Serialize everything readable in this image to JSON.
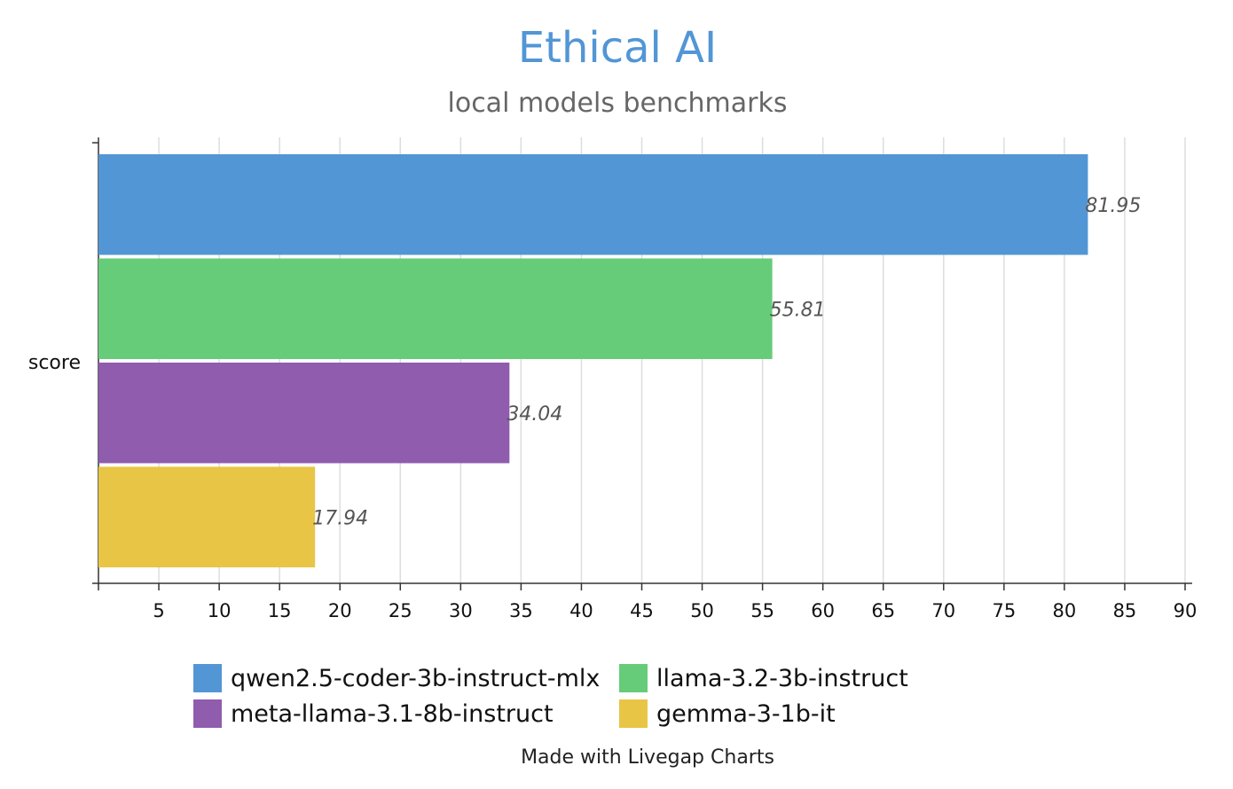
{
  "chart_data": {
    "type": "bar",
    "orientation": "horizontal",
    "title": "Ethical AI",
    "subtitle": "local models benchmarks",
    "categories": [
      "score"
    ],
    "series": [
      {
        "name": "qwen2.5-coder-3b-instruct-mlx",
        "color": "#5296d5",
        "values": [
          81.95
        ],
        "label": "81.95"
      },
      {
        "name": "llama-3.2-3b-instruct",
        "color": "#66cc7a",
        "values": [
          55.81
        ],
        "label": "55.81"
      },
      {
        "name": "meta-llama-3.1-8b-instruct",
        "color": "#905cae",
        "values": [
          34.04
        ],
        "label": "34.04"
      },
      {
        "name": "gemma-3-1b-it",
        "color": "#e8c545",
        "values": [
          17.94
        ],
        "label": "17.94"
      }
    ],
    "xlim": [
      0,
      90
    ],
    "xticks": [
      5,
      10,
      15,
      20,
      25,
      30,
      35,
      40,
      45,
      50,
      55,
      60,
      65,
      70,
      75,
      80,
      85,
      90
    ],
    "grid": true,
    "legend_position": "bottom"
  },
  "colors": {
    "title": "#5296d5",
    "subtitle": "#666666",
    "axis": "#333333",
    "grid": "#dddddd",
    "data_label": "#555555"
  },
  "footer": {
    "credit": "Made with Livegap Charts"
  }
}
